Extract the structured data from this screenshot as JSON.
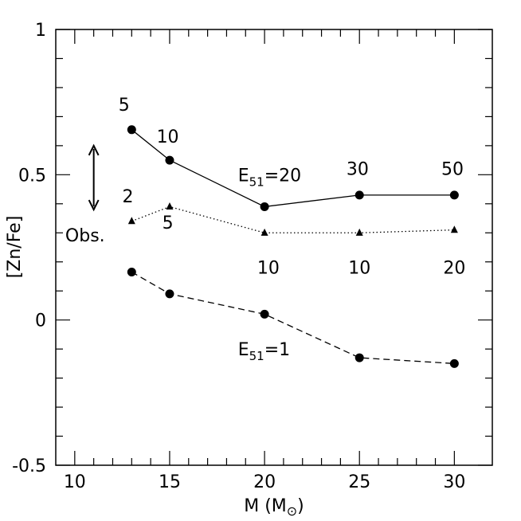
{
  "chart_data": {
    "type": "line",
    "title": "",
    "xlabel": "M (M⊙)",
    "ylabel": "[Zn/Fe]",
    "xlim": [
      9,
      32
    ],
    "ylim": [
      -0.5,
      1
    ],
    "xticks": [
      10,
      15,
      20,
      25,
      30
    ],
    "yticks": [
      -0.5,
      0,
      0.5,
      1
    ],
    "xtick_labels": [
      "10",
      "15",
      "20",
      "25",
      "30"
    ],
    "ytick_labels": [
      "-0.5",
      "0",
      "0.5",
      "1"
    ],
    "grid": false,
    "series": [
      {
        "style": "solid",
        "marker": "circle",
        "x": [
          13,
          15,
          20,
          25,
          30
        ],
        "y": [
          0.655,
          0.55,
          0.39,
          0.43,
          0.43
        ]
      },
      {
        "style": "dotted",
        "marker": "triangle",
        "x": [
          13,
          15,
          20,
          25,
          30
        ],
        "y": [
          0.34,
          0.39,
          0.3,
          0.3,
          0.31
        ]
      },
      {
        "style": "dashed",
        "marker": "circle",
        "x": [
          13,
          15,
          20,
          25,
          30
        ],
        "y": [
          0.165,
          0.09,
          0.02,
          -0.13,
          -0.15
        ]
      }
    ],
    "point_labels": [
      {
        "text": "5",
        "x": 12.6,
        "y": 0.72
      },
      {
        "text": "10",
        "x": 14.9,
        "y": 0.61
      },
      {
        "text": "30",
        "x": 24.9,
        "y": 0.5
      },
      {
        "text": "50",
        "x": 29.9,
        "y": 0.5
      },
      {
        "text": "2",
        "x": 12.8,
        "y": 0.405
      },
      {
        "text": "5",
        "x": 14.9,
        "y": 0.315
      },
      {
        "text": "10",
        "x": 20.2,
        "y": 0.16
      },
      {
        "text": "10",
        "x": 25.0,
        "y": 0.16
      },
      {
        "text": "20",
        "x": 30.0,
        "y": 0.16
      }
    ],
    "annotations": [
      {
        "text": "E",
        "sub": "51",
        "rest": "=20",
        "x": 18.6,
        "y": 0.5
      },
      {
        "text": "E",
        "sub": "51",
        "rest": "=1",
        "x": 18.6,
        "y": -0.1
      }
    ],
    "obs": {
      "label": "Obs.",
      "x": 11,
      "y_range": [
        0.38,
        0.6
      ],
      "label_x": 9.5,
      "label_y": 0.27
    }
  }
}
